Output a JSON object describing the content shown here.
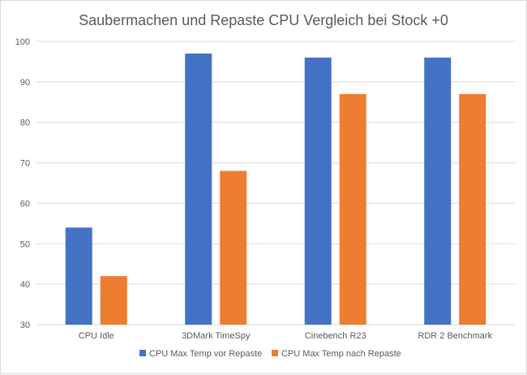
{
  "chart_data": {
    "type": "bar",
    "title": "Saubermachen und Repaste CPU Vergleich bei Stock +0",
    "categories": [
      "CPU Idle",
      "3DMark TimeSpy",
      "Cinebench R23",
      "RDR 2 Benchmark"
    ],
    "series": [
      {
        "name": "CPU Max Temp vor Repaste",
        "values": [
          54,
          97,
          96,
          96
        ],
        "color": "#4472C4"
      },
      {
        "name": "CPU Max Temp nach Repaste",
        "values": [
          42,
          68,
          87,
          87
        ],
        "color": "#ED7D31"
      }
    ],
    "ylim": [
      30,
      100
    ],
    "yticks": [
      30,
      40,
      50,
      60,
      70,
      80,
      90,
      100
    ],
    "grid": true,
    "legend": "bottom",
    "xlabel": "",
    "ylabel": ""
  }
}
